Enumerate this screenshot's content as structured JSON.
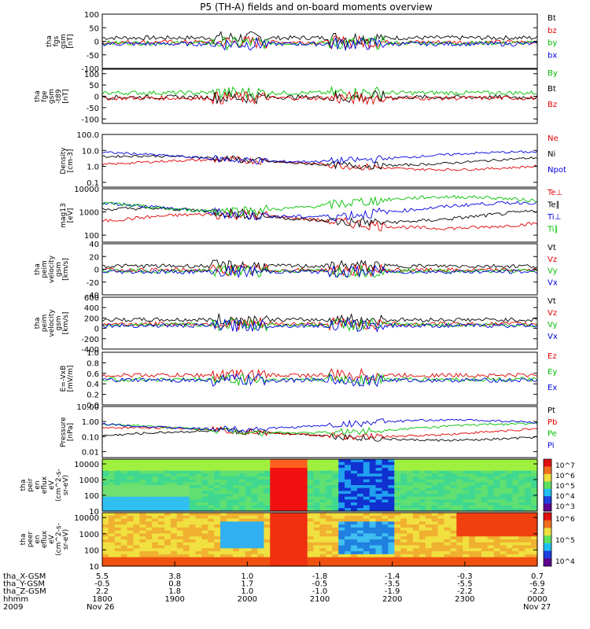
{
  "title": "P5 (TH-A) fields and on-board moments overview",
  "chart_data": [
    {
      "type": "line",
      "ylabel": [
        "tha",
        "fgs",
        "gsm",
        "[nT]"
      ],
      "ylim": [
        -100,
        100
      ],
      "ticks": [
        "100",
        "50",
        "0",
        "-50",
        "-100"
      ],
      "legend": [
        {
          "label": "Bt",
          "color": "#000000"
        },
        {
          "label": "bz",
          "color": "#e00000"
        },
        {
          "label": "by",
          "color": "#00c000"
        },
        {
          "label": "bx",
          "color": "#0000e0"
        }
      ]
    },
    {
      "type": "line",
      "ylabel": [
        "tha",
        "fge",
        "gsm",
        "-t89",
        "[nT]"
      ],
      "ylim": [
        -120,
        120
      ],
      "ticks": [
        "100",
        "50",
        "0",
        "-50",
        "-100"
      ],
      "legend": [
        {
          "label": "By",
          "color": "#00c000"
        },
        {
          "label": "Bt",
          "color": "#000000"
        },
        {
          "label": "Bz",
          "color": "#e00000"
        }
      ]
    },
    {
      "type": "line",
      "ylabel": [
        "Density",
        "[cm-3]"
      ],
      "ylim": [
        0.05,
        100
      ],
      "scale": "log",
      "ticks": [
        "100.0",
        "10.0",
        "1.0",
        "0.1"
      ],
      "legend": [
        {
          "label": "Ne",
          "color": "#e00000"
        },
        {
          "label": "Ni",
          "color": "#000000"
        },
        {
          "label": "Npot",
          "color": "#0000e0"
        }
      ]
    },
    {
      "type": "line",
      "ylabel": [
        "mag13",
        "[eV]"
      ],
      "ylim": [
        50,
        10000
      ],
      "scale": "log",
      "ticks": [
        "10000",
        "1000",
        "100"
      ],
      "legend": [
        {
          "label": "Te⊥",
          "color": "#e00000"
        },
        {
          "label": "Te∥",
          "color": "#000000"
        },
        {
          "label": "Ti⊥",
          "color": "#0000e0"
        },
        {
          "label": "Ti∥",
          "color": "#00c000"
        }
      ]
    },
    {
      "type": "line",
      "ylabel": [
        "tha",
        "peim",
        "velocity",
        "gsm",
        "[km/s]"
      ],
      "ylim": [
        -40,
        40
      ],
      "ticks": [
        "40",
        "20",
        "0",
        "-20",
        "-40"
      ],
      "legend": [
        {
          "label": "Vt",
          "color": "#000000"
        },
        {
          "label": "Vz",
          "color": "#e00000"
        },
        {
          "label": "Vy",
          "color": "#00c000"
        },
        {
          "label": "Vx",
          "color": "#0000e0"
        }
      ]
    },
    {
      "type": "line",
      "ylabel": [
        "tha",
        "peim",
        "velocity",
        "gsm",
        "[km/s]"
      ],
      "ylim": [
        -400,
        600
      ],
      "ticks": [
        "600",
        "400",
        "200",
        "0",
        "-200",
        "-400"
      ],
      "legend": [
        {
          "label": "Vt",
          "color": "#000000"
        },
        {
          "label": "Vz",
          "color": "#e00000"
        },
        {
          "label": "Vy",
          "color": "#00c000"
        },
        {
          "label": "Vx",
          "color": "#0000e0"
        }
      ]
    },
    {
      "type": "line",
      "ylabel": [
        "E=-VxB",
        "[mV/m]"
      ],
      "ylim": [
        0,
        1
      ],
      "ticks": [
        "1.0",
        "0.8",
        "0.6",
        "0.4",
        "0.2",
        "0.0"
      ],
      "legend": [
        {
          "label": "Ez",
          "color": "#e00000"
        },
        {
          "label": "Ey",
          "color": "#00c000"
        },
        {
          "label": "Ex",
          "color": "#0000e0"
        }
      ]
    },
    {
      "type": "line",
      "ylabel": [
        "Pressure",
        "[nPa]"
      ],
      "ylim": [
        0.004,
        10
      ],
      "scale": "log",
      "ticks": [
        "10.00",
        "1.00",
        "0.10",
        "0.01"
      ],
      "legend": [
        {
          "label": "Pt",
          "color": "#000000"
        },
        {
          "label": "Pb",
          "color": "#e00000"
        },
        {
          "label": "Pe",
          "color": "#00c000"
        },
        {
          "label": "Pi",
          "color": "#0000e0"
        }
      ]
    },
    {
      "type": "heatmap",
      "ylabel": [
        "tha",
        "peir",
        "en",
        "eflux",
        "eV",
        "(cm^2-s-",
        "sr-eV)"
      ],
      "ylim": [
        10,
        20000
      ],
      "scale": "log",
      "ticks": [
        "10000",
        "1000",
        "100",
        "10"
      ],
      "colorbar": [
        "10^7",
        "10^6",
        "10^5",
        "10^4",
        "10^3"
      ]
    },
    {
      "type": "heatmap",
      "ylabel": [
        "tha",
        "peer",
        "en",
        "eflux",
        "eV",
        "(cm^2-s-",
        "sr-eV)"
      ],
      "ylim": [
        10,
        20000
      ],
      "scale": "log",
      "ticks": [
        "10000",
        "1000",
        "100",
        "10"
      ],
      "colorbar": [
        "10^6",
        "10^5",
        "10^4"
      ]
    }
  ],
  "x_axis": {
    "rows": [
      {
        "label": "tha_X-GSM",
        "values": [
          "5.5",
          "3.8",
          "1.0",
          "-1.8",
          "-1.4",
          "-0.3",
          "0.7"
        ]
      },
      {
        "label": "tha_Y-GSM",
        "values": [
          "-0.5",
          "0.8",
          "1.7",
          "-0.5",
          "-3.5",
          "-5.5",
          "-6.9"
        ]
      },
      {
        "label": "tha_Z-GSM",
        "values": [
          "2.2",
          "1.8",
          "1.0",
          "-1.0",
          "-1.9",
          "-2.2",
          "-2.2"
        ]
      },
      {
        "label": "hhmm",
        "values": [
          "1800",
          "1900",
          "2000",
          "2100",
          "2200",
          "2300",
          "0000"
        ]
      }
    ],
    "year": "2009",
    "date_start": "Nov 26",
    "date_end": "Nov 27"
  }
}
